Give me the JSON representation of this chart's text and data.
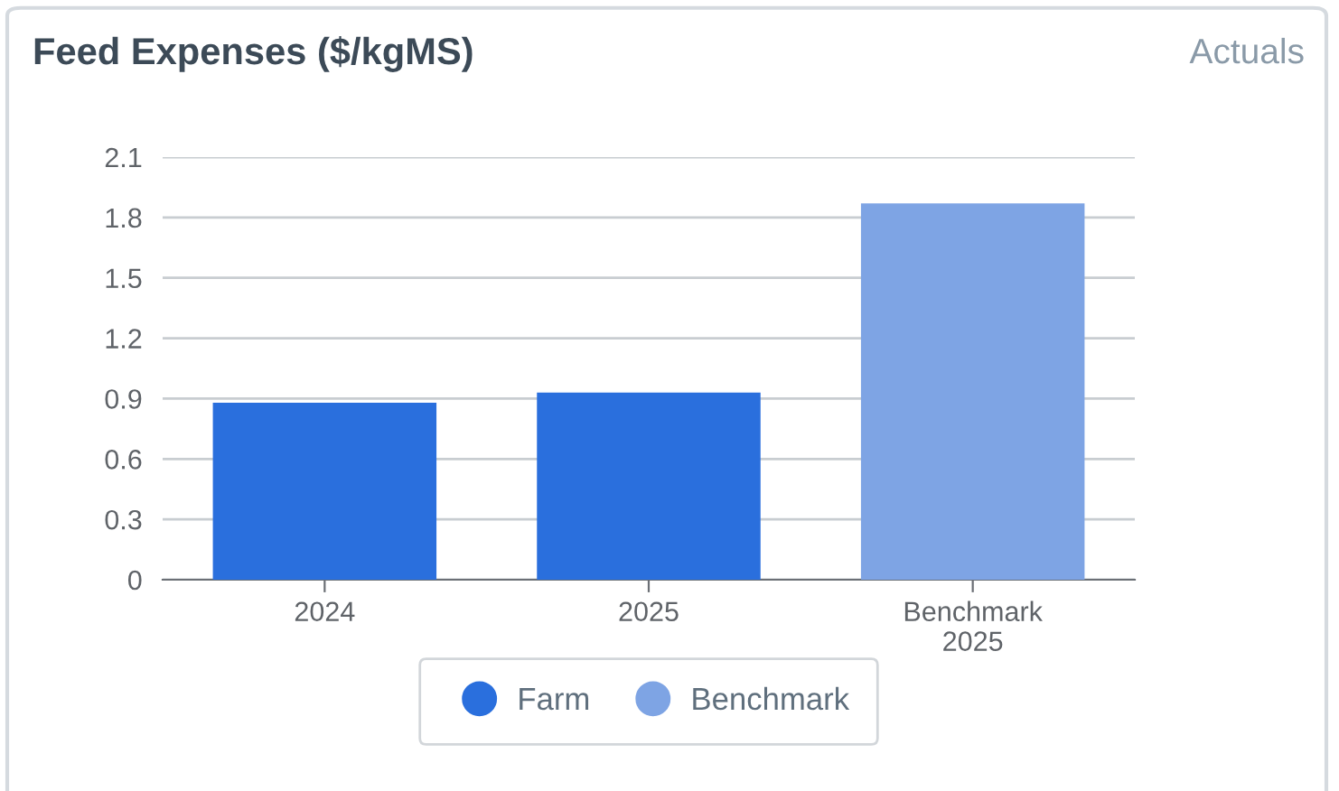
{
  "chart_data": {
    "type": "bar",
    "title": "Feed Expenses ($/kgMS)",
    "annotations": [
      "Actuals"
    ],
    "categories": [
      "2024",
      "2025",
      "Benchmark\n2025"
    ],
    "series": [
      {
        "name": "Farm",
        "color": "#2a6fdd",
        "values": [
          0.88,
          0.93,
          null
        ]
      },
      {
        "name": "Benchmark",
        "color": "#7ea4e4",
        "values": [
          null,
          null,
          1.87
        ]
      }
    ],
    "ylim": [
      0,
      2.1
    ],
    "yticks": [
      0,
      0.3,
      0.6,
      0.9,
      1.2,
      1.5,
      1.8,
      2.1
    ],
    "grid": "y",
    "legend": "bottom"
  }
}
